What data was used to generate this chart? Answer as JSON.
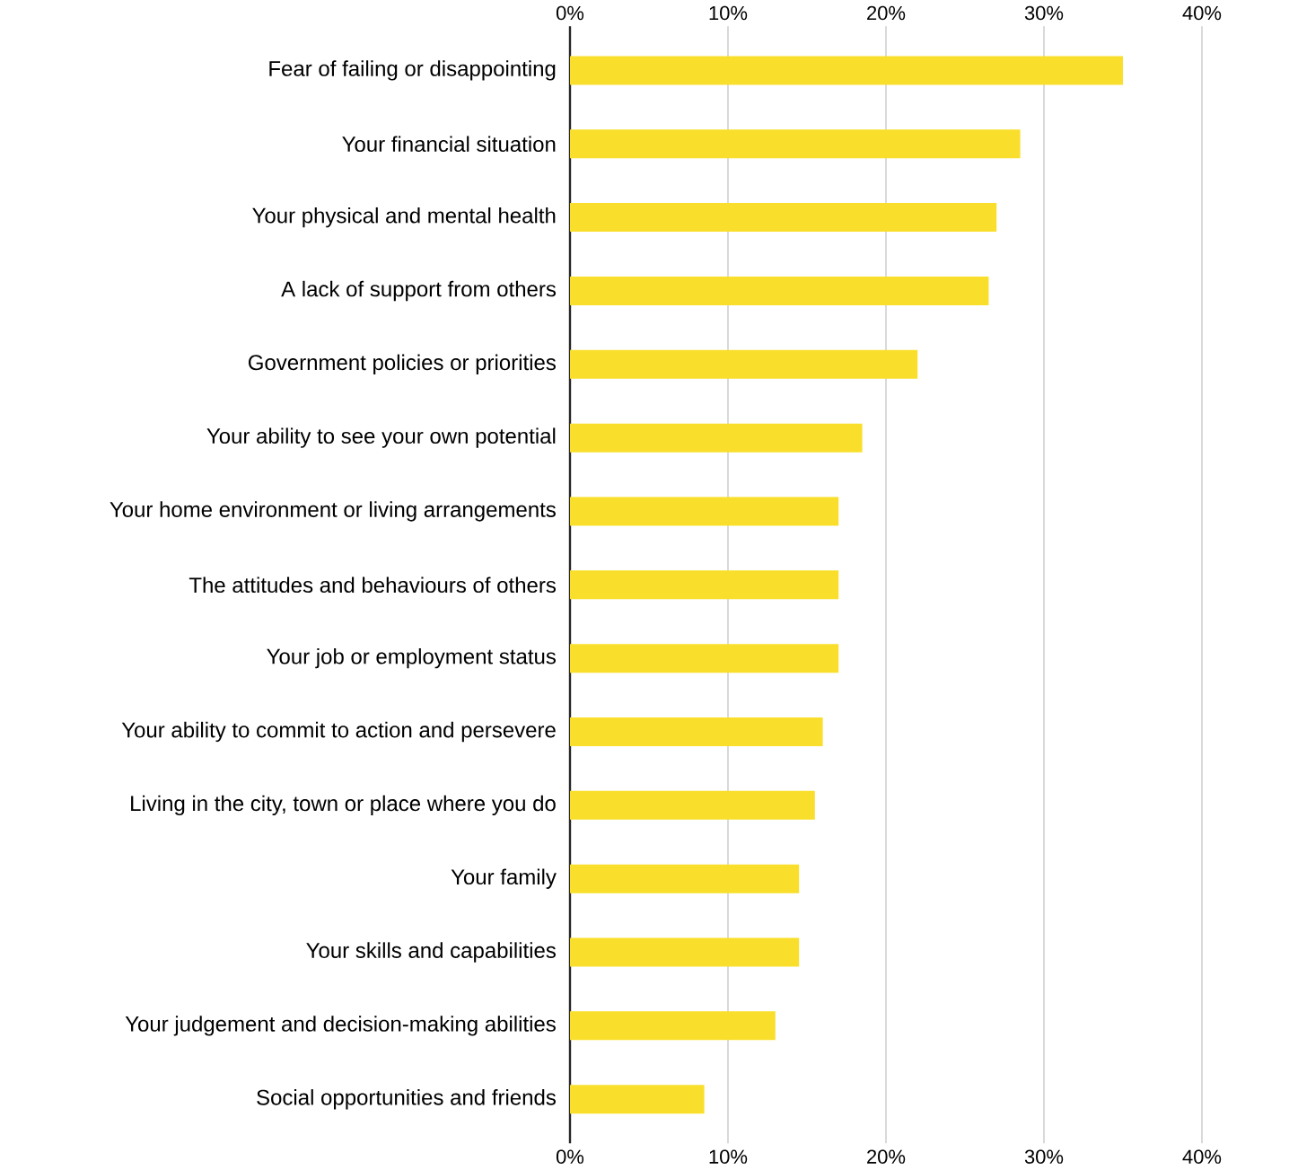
{
  "chart_data": {
    "type": "bar",
    "orientation": "horizontal",
    "categories": [
      "Fear of failing or disappointing",
      "Your financial situation",
      "Your physical and mental health",
      "A lack of support from others",
      "Government policies or priorities",
      "Your ability to see your own potential",
      "Your home environment or living arrangements",
      "The attitudes and behaviours of others",
      "Your job or employment status",
      "Your ability to commit to action and persevere",
      "Living in the city, town or place where you do",
      "Your family",
      "Your skills and capabilities",
      "Your judgement and decision-making abilities",
      "Social opportunities and friends"
    ],
    "values": [
      35,
      28.5,
      27,
      26.5,
      22,
      18.5,
      17,
      17,
      17,
      16,
      15.5,
      14.5,
      14.5,
      13,
      8.5
    ],
    "color": "#f9df2b",
    "xlim": [
      0,
      40
    ],
    "xticks": [
      {
        "value": 0,
        "label": "0%"
      },
      {
        "value": 10,
        "label": "10%"
      },
      {
        "value": 20,
        "label": "20%"
      },
      {
        "value": 30,
        "label": "30%"
      },
      {
        "value": 40,
        "label": "40%"
      }
    ],
    "x2lim": [
      0,
      40
    ],
    "x2ticks": [
      {
        "value": 0,
        "label": "0%"
      },
      {
        "value": 10,
        "label": "10%"
      },
      {
        "value": 20,
        "label": "20%"
      },
      {
        "value": 30,
        "label": "30%"
      },
      {
        "value": 40,
        "label": "40%"
      }
    ],
    "grid": "x"
  }
}
